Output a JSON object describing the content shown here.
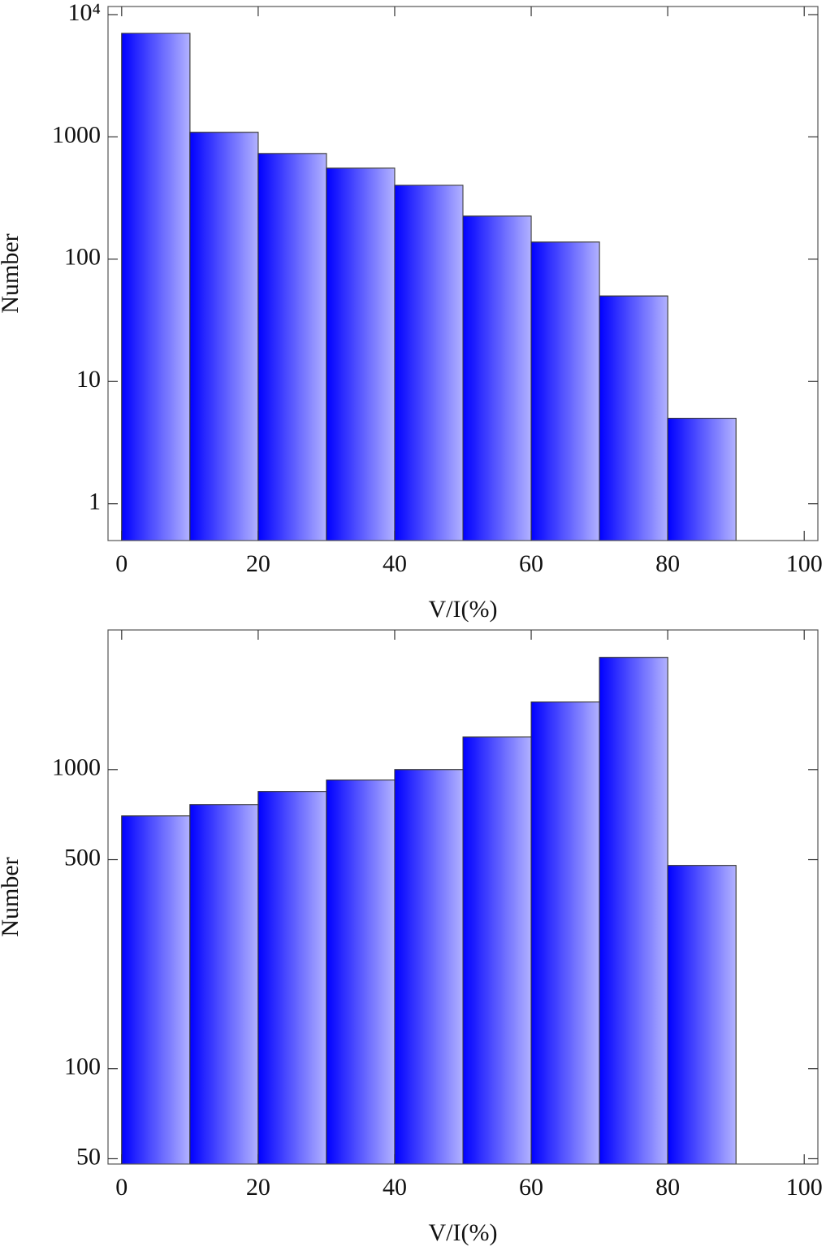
{
  "chart_data": [
    {
      "type": "histogram",
      "xlabel": "V/I(%)",
      "ylabel": "Number",
      "log_y": true,
      "color": "#0000ff",
      "bins": [
        0,
        10,
        20,
        30,
        40,
        50,
        60,
        70,
        80,
        90
      ],
      "values": [
        7030,
        1090,
        731,
        555,
        402,
        225,
        138,
        50,
        5
      ],
      "xlim": [
        -2,
        102
      ],
      "ylim": [
        0.5,
        11650
      ],
      "xticks": [
        0,
        20,
        40,
        60,
        80,
        100
      ],
      "yticks": [
        1,
        10,
        100,
        1000,
        {
          "value": 10000,
          "label": "10⁴"
        }
      ]
    },
    {
      "type": "histogram",
      "xlabel": "V/I(%)",
      "ylabel": "Number",
      "log_y": true,
      "color": "#0000ff",
      "bins": [
        0,
        10,
        20,
        30,
        40,
        50,
        60,
        70,
        80,
        90
      ],
      "values": [
        700,
        764,
        845,
        923,
        1000,
        1285,
        1683,
        2372,
        478
      ],
      "xlim": [
        -2,
        102
      ],
      "ylim": [
        48,
        2930
      ],
      "xticks": [
        0,
        20,
        40,
        60,
        80,
        100
      ],
      "yticks": [
        50,
        100,
        500,
        1000
      ]
    }
  ]
}
